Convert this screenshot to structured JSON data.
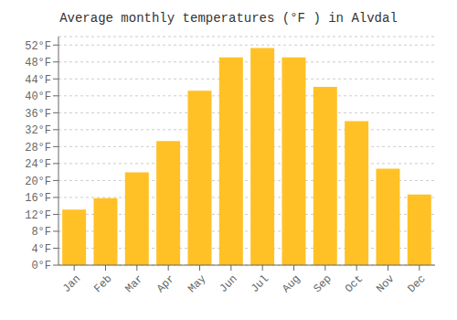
{
  "chart_data": {
    "type": "bar",
    "title": "Average monthly temperatures (°F ) in Alvdal",
    "categories": [
      "Jan",
      "Feb",
      "Mar",
      "Apr",
      "May",
      "Jun",
      "Jul",
      "Aug",
      "Sep",
      "Oct",
      "Nov",
      "Dec"
    ],
    "values": [
      13.1,
      15.8,
      21.9,
      29.3,
      41.2,
      49.1,
      51.3,
      49.1,
      42.1,
      34.0,
      22.8,
      16.7
    ],
    "color": "#FFC125",
    "ylim": [
      0,
      54
    ],
    "yticks": [
      {
        "value": 0,
        "label": "0°F"
      },
      {
        "value": 4,
        "label": "4°F"
      },
      {
        "value": 8,
        "label": "8°F"
      },
      {
        "value": 12,
        "label": "12°F"
      },
      {
        "value": 16,
        "label": "16°F"
      },
      {
        "value": 20,
        "label": "20°F"
      },
      {
        "value": 24,
        "label": "24°F"
      },
      {
        "value": 28,
        "label": "28°F"
      },
      {
        "value": 32,
        "label": "32°F"
      },
      {
        "value": 36,
        "label": "36°F"
      },
      {
        "value": 40,
        "label": "40°F"
      },
      {
        "value": 44,
        "label": "44°F"
      },
      {
        "value": 48,
        "label": "48°F"
      },
      {
        "value": 52,
        "label": "52°F"
      }
    ],
    "grid": true
  }
}
